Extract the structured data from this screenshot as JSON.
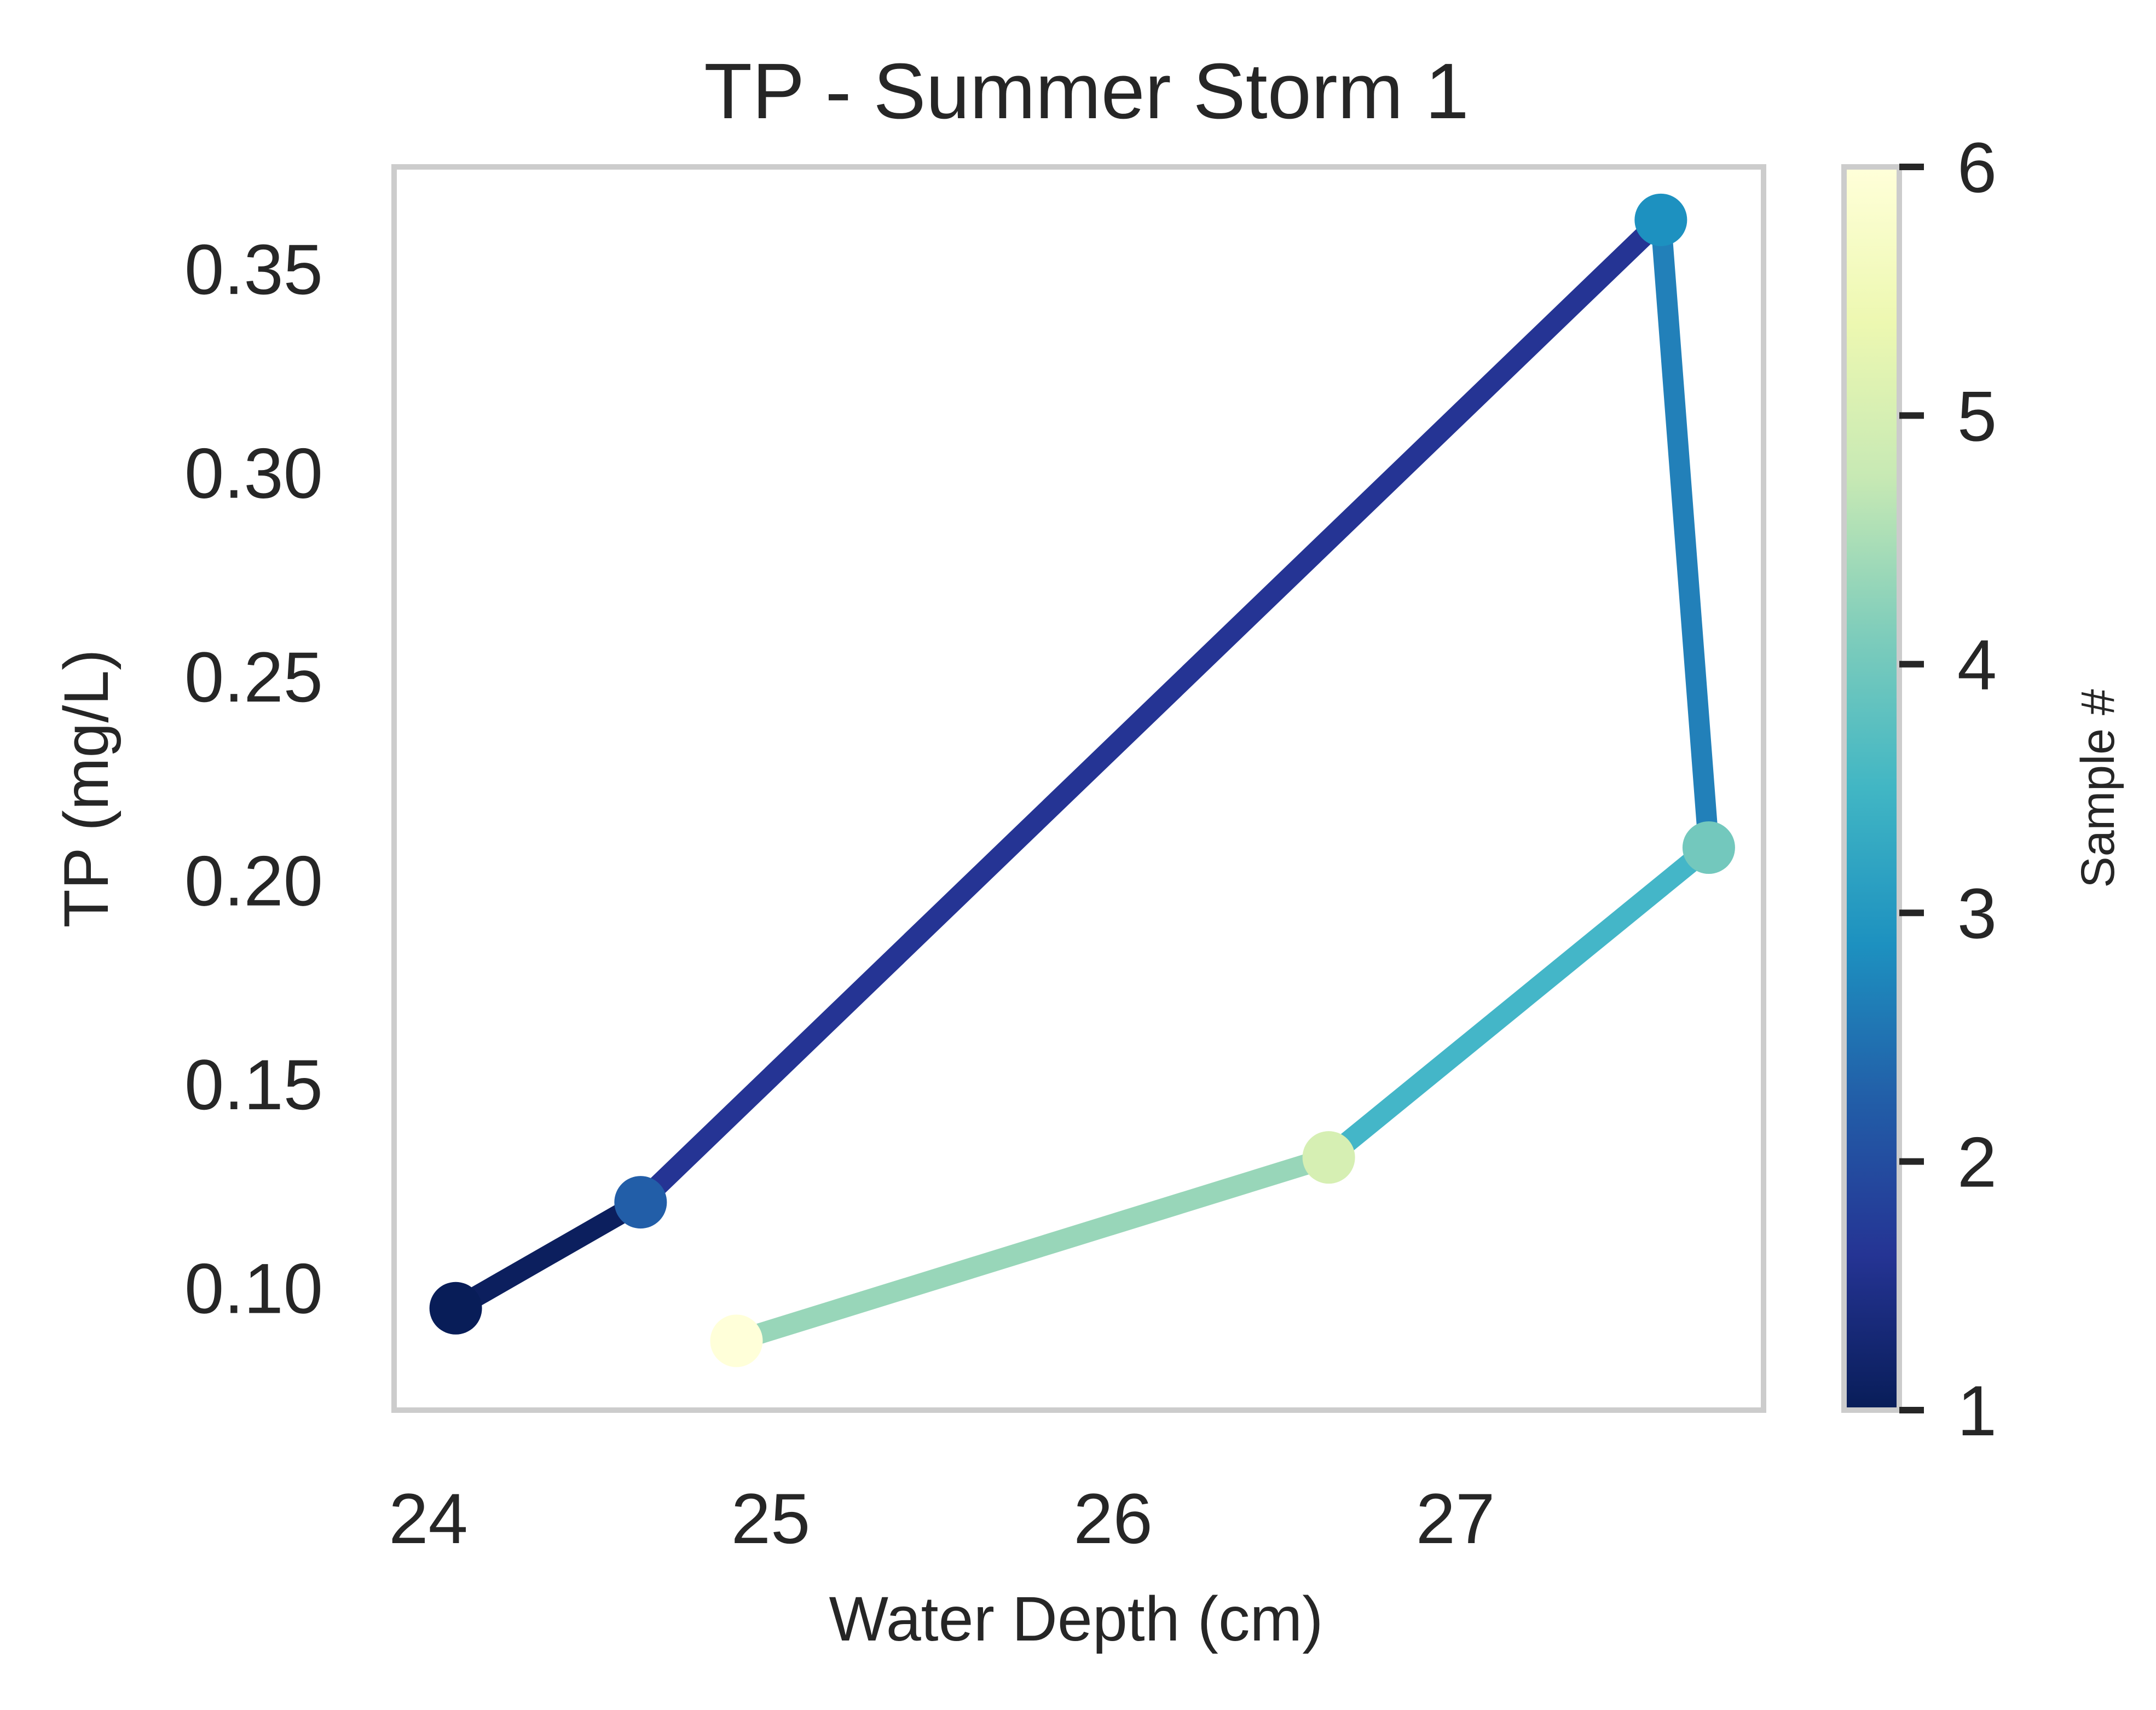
{
  "chart_data": {
    "type": "line",
    "title": "TP - Summer Storm 1",
    "xlabel": "Water Depth (cm)",
    "ylabel": "TP (mg/L)",
    "xlim": [
      23.9,
      27.9
    ],
    "ylim": [
      0.07,
      0.375
    ],
    "xticks": [
      24,
      25,
      26,
      27
    ],
    "xtick_labels": [
      "24",
      "25",
      "26",
      "27"
    ],
    "yticks": [
      0.1,
      0.15,
      0.2,
      0.25,
      0.3,
      0.35
    ],
    "ytick_labels": [
      "0.10",
      "0.15",
      "0.20",
      "0.25",
      "0.30",
      "0.35"
    ],
    "grid": false,
    "colormap": "YlGnBu_r",
    "series": [
      {
        "x": [
          24.08,
          24.62,
          27.6,
          27.74,
          26.63,
          24.9
        ],
        "y": [
          0.095,
          0.121,
          0.362,
          0.208,
          0.132,
          0.087
        ],
        "sample": [
          1,
          2,
          3,
          4,
          5,
          6
        ],
        "point_colors": [
          "#081d58",
          "#225ea8",
          "#1d91c0",
          "#73c8bd",
          "#d6efb3",
          "#ffffd9"
        ],
        "segment_colors": [
          "#0c1f5e",
          "#253494",
          "#2280b9",
          "#44b6c8",
          "#98d6b9"
        ]
      }
    ],
    "colorbar": {
      "label": "Sample #",
      "range": [
        1,
        6
      ],
      "ticks": [
        1,
        2,
        3,
        4,
        5,
        6
      ],
      "tick_labels": [
        "1",
        "2",
        "3",
        "4",
        "5",
        "6"
      ],
      "stops": [
        "#081d58",
        "#253494",
        "#225ea8",
        "#1d91c0",
        "#41b6c4",
        "#7fcdbb",
        "#c7e9b4",
        "#edf8b1",
        "#ffffd9"
      ]
    }
  },
  "colors": {
    "frame": "#cccccc",
    "text": "#262626",
    "tick_mark": "#262626"
  }
}
